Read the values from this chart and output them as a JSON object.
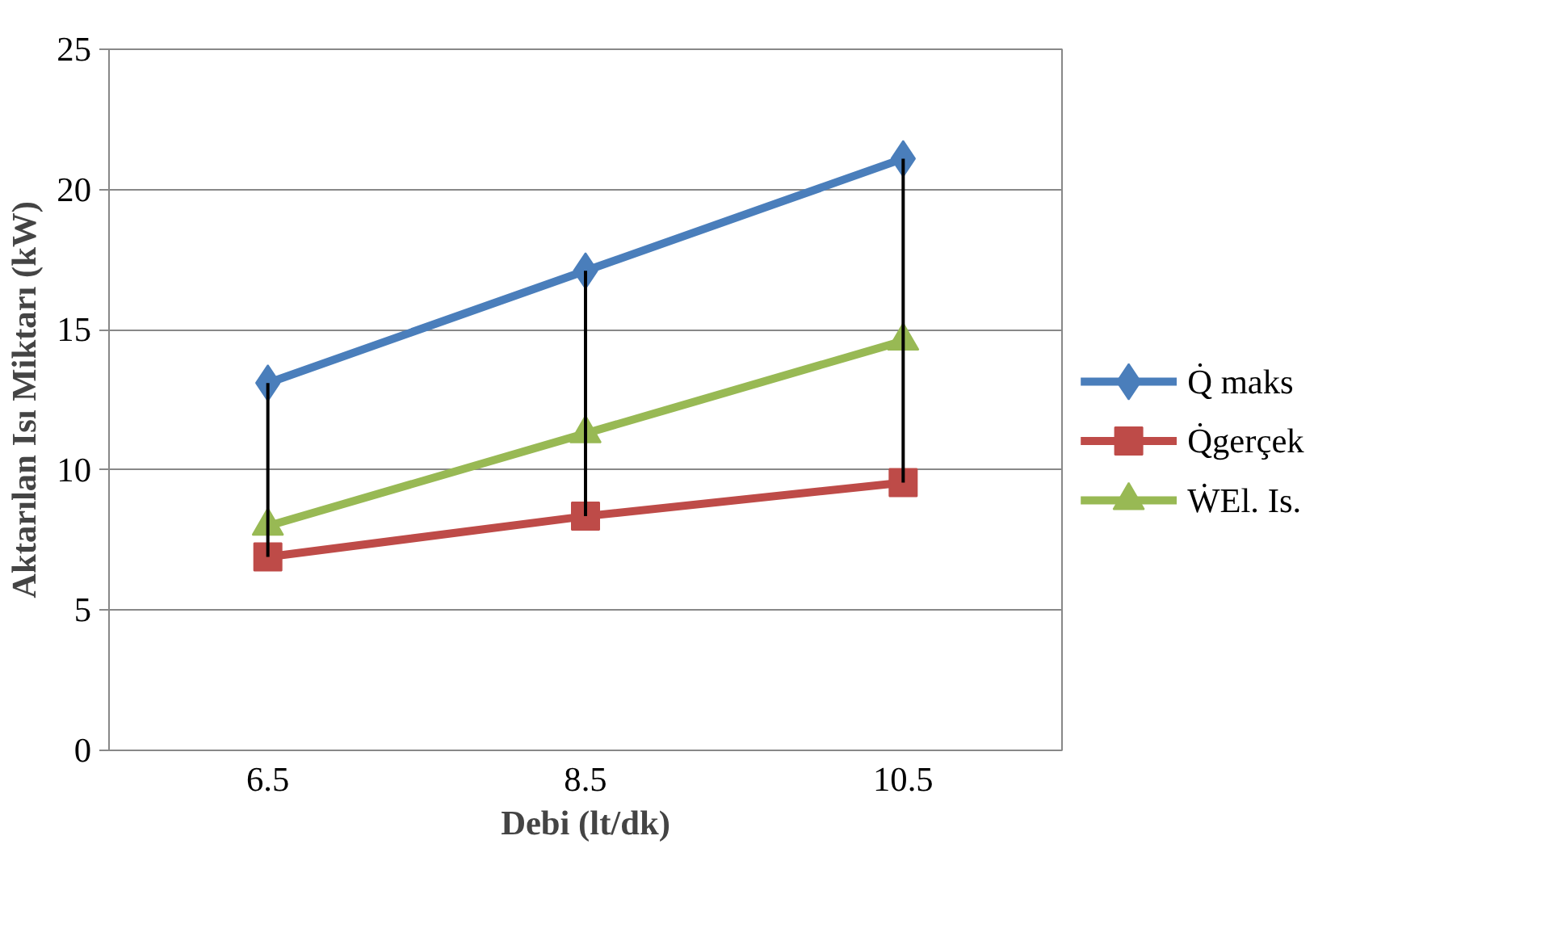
{
  "chart_data": {
    "type": "line",
    "xlabel": "Debi (lt/dk)",
    "ylabel": "Aktarılan Isı Miktarı (kW)",
    "categories": [
      "6.5",
      "8.5",
      "10.5"
    ],
    "series": [
      {
        "name": "Q̇ maks",
        "color": "#4a7ebb",
        "marker": "diamond",
        "values": [
          13.1,
          17.1,
          21.1
        ],
        "errors": [
          [
            6.9,
            13.1
          ],
          [
            8.35,
            17.1
          ],
          [
            9.55,
            21.1
          ]
        ]
      },
      {
        "name": "Q̇gerçek",
        "color": "#be4b48",
        "marker": "square",
        "values": [
          6.9,
          8.35,
          9.55
        ]
      },
      {
        "name": "ẆEl. Is.",
        "color": "#98b954",
        "marker": "triangle",
        "values": [
          8.0,
          11.3,
          14.6
        ]
      }
    ],
    "ylim": [
      0,
      25
    ],
    "yticks": [
      0,
      5,
      10,
      15,
      20,
      25
    ],
    "grid": "y",
    "legend": "right"
  }
}
